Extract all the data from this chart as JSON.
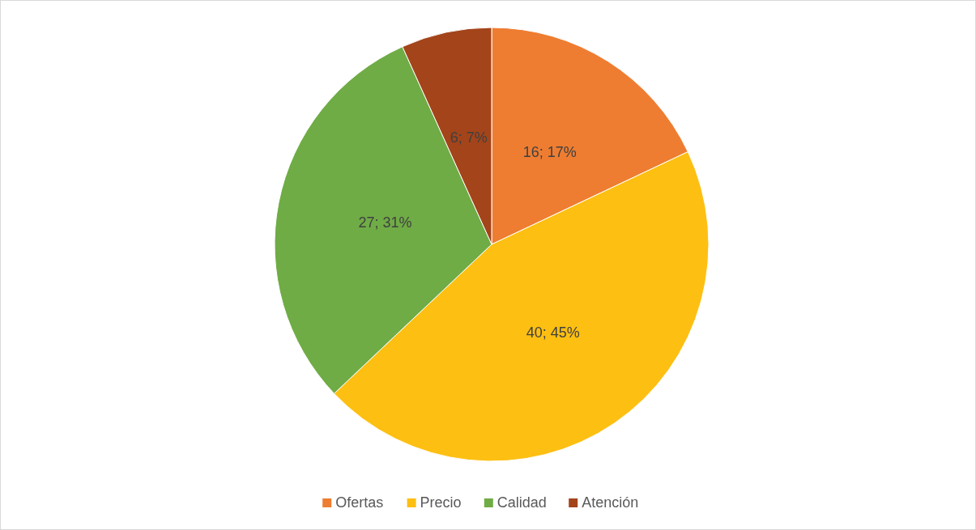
{
  "chart_data": {
    "type": "pie",
    "categories": [
      "Ofertas",
      "Precio",
      "Calidad",
      "Atención"
    ],
    "values": [
      16,
      40,
      27,
      6
    ],
    "colors": [
      "#ee7d31",
      "#fdbf12",
      "#6fac45",
      "#a3441a"
    ],
    "value_labels": [
      "16; 17%",
      "40; 45%",
      "27; 31%",
      "6; 7%"
    ],
    "legend": "bottom"
  }
}
